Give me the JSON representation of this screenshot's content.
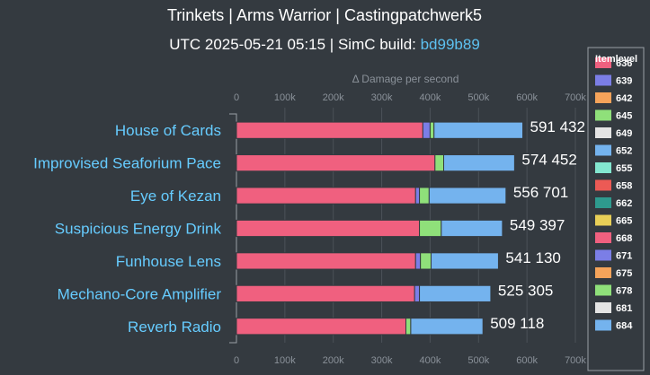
{
  "title": "Trinkets | Arms Warrior | Castingpatchwerk5",
  "subtitle_prefix": "UTC 2025-05-21 05:15 | SimC build: ",
  "subtitle_build": "bd99b89",
  "chart_data": {
    "type": "bar",
    "orientation": "horizontal",
    "stacked": true,
    "value_axis_title": "Δ Damage per second",
    "value_axis_ticks": [
      "0",
      "100k",
      "200k",
      "300k",
      "400k",
      "500k",
      "600k",
      "700k"
    ],
    "xlim": [
      0,
      700000
    ],
    "grid": true,
    "legend_title": "Itemlevel",
    "legend_position": "right",
    "categories": [
      "House of Cards",
      "Improvised Seaforium Pace",
      "Eye of Kezan",
      "Suspicious Energy Drink",
      "Funhouse Lens",
      "Mechano-Core Amplifier",
      "Reverb Radio"
    ],
    "totals": [
      "591 432",
      "574 452",
      "556 701",
      "549 397",
      "541 130",
      "525 305",
      "509 118"
    ],
    "series": [
      {
        "name": "636",
        "color": "#f0607f",
        "values": [
          0,
          0,
          0,
          0,
          0,
          0,
          0
        ]
      },
      {
        "name": "639",
        "color": "#7b7ee6",
        "values": [
          0,
          0,
          0,
          0,
          0,
          0,
          0
        ]
      },
      {
        "name": "642",
        "color": "#f5a35a",
        "values": [
          0,
          0,
          0,
          0,
          0,
          0,
          0
        ]
      },
      {
        "name": "645",
        "color": "#8fe07a",
        "values": [
          0,
          0,
          0,
          0,
          0,
          0,
          0
        ]
      },
      {
        "name": "649",
        "color": "#e4e4e4",
        "values": [
          0,
          0,
          0,
          0,
          0,
          0,
          0
        ]
      },
      {
        "name": "652",
        "color": "#74b3ee",
        "values": [
          0,
          0,
          0,
          0,
          0,
          0,
          0
        ]
      },
      {
        "name": "655",
        "color": "#83e6cf",
        "values": [
          0,
          0,
          0,
          0,
          0,
          0,
          0
        ]
      },
      {
        "name": "658",
        "color": "#ec5a55",
        "values": [
          0,
          0,
          0,
          0,
          0,
          0,
          0
        ]
      },
      {
        "name": "662",
        "color": "#2e9a8e",
        "values": [
          0,
          0,
          0,
          0,
          0,
          0,
          0
        ]
      },
      {
        "name": "665",
        "color": "#e8cf57",
        "values": [
          0,
          0,
          0,
          0,
          0,
          0,
          0
        ]
      },
      {
        "name": "668",
        "color": "#f0607f",
        "values": [
          385000,
          410000,
          370000,
          378000,
          370000,
          368000,
          350000
        ]
      },
      {
        "name": "671",
        "color": "#7b7ee6",
        "values": [
          15000,
          0,
          8000,
          0,
          10000,
          10000,
          0
        ]
      },
      {
        "name": "675",
        "color": "#f5a35a",
        "values": [
          0,
          0,
          0,
          0,
          0,
          0,
          0
        ]
      },
      {
        "name": "678",
        "color": "#8fe07a",
        "values": [
          8000,
          18000,
          20000,
          45000,
          22000,
          0,
          10000
        ]
      },
      {
        "name": "681",
        "color": "#e4e4e4",
        "values": [
          0,
          0,
          0,
          0,
          0,
          0,
          0
        ]
      },
      {
        "name": "684",
        "color": "#74b3ee",
        "values": [
          183432,
          146452,
          158701,
          126397,
          139130,
          147305,
          149118
        ]
      }
    ]
  }
}
